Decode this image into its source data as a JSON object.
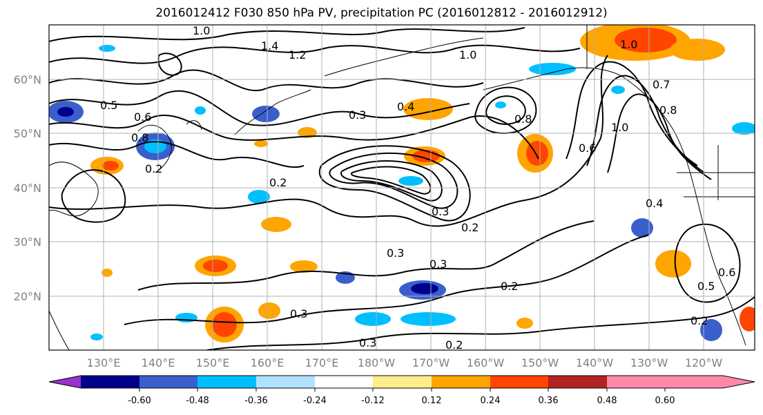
{
  "title": "2016012412 F030 850 hPa PV, precipitation PC (2016012812 - 2016012912)",
  "map": {
    "lat_labels": [
      "60°N",
      "50°N",
      "40°N",
      "30°N",
      "20°N"
    ],
    "lon_labels": [
      "130°E",
      "140°E",
      "150°E",
      "160°E",
      "170°E",
      "180°W",
      "170°W",
      "160°W",
      "150°W",
      "140°W",
      "130°W",
      "120°W"
    ],
    "contour_labels": [
      "1.0",
      "1.4",
      "1.2",
      "1.0",
      "0.5",
      "0.6",
      "0.8",
      "0.2",
      "0.3",
      "0.4",
      "0.8",
      "1.0",
      "0.6",
      "0.3",
      "0.2",
      "0.3",
      "0.3",
      "0.2",
      "0.3",
      "0.2",
      "0.3",
      "0.2",
      "0.5",
      "0.6",
      "0.2",
      "0.4",
      "0.7",
      "0.8",
      "1.0"
    ]
  },
  "colorbar": {
    "colors": [
      "#9932cc",
      "#00008b",
      "#3a5fcd",
      "#00bfff",
      "#b0e2ff",
      "#ffffff",
      "#ffec8b",
      "#ffa500",
      "#ff4500",
      "#b22222",
      "#ff88aa"
    ],
    "tick_labels": [
      "-0.60",
      "-0.48",
      "-0.36",
      "-0.24",
      "-0.12",
      "0.12",
      "0.24",
      "0.36",
      "0.48",
      "0.60"
    ]
  }
}
